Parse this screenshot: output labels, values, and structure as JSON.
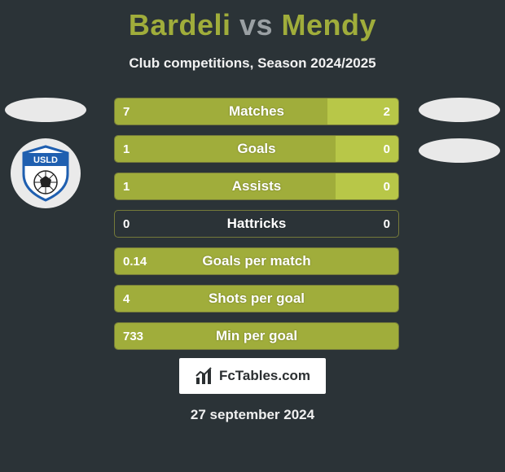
{
  "title": {
    "player1": "Bardeli",
    "vs": "vs",
    "player2": "Mendy"
  },
  "title_color": "#a0ad3b",
  "subtitle": "Club competitions, Season 2024/2025",
  "colors": {
    "bar_left": "#a0ad3b",
    "bar_right": "#b8c748",
    "bar_border": "#757a3a",
    "background": "#2b3337"
  },
  "bars": [
    {
      "label": "Matches",
      "left_val": "7",
      "right_val": "2",
      "left_pct": 75,
      "right_pct": 25
    },
    {
      "label": "Goals",
      "left_val": "1",
      "right_val": "0",
      "left_pct": 78,
      "right_pct": 22
    },
    {
      "label": "Assists",
      "left_val": "1",
      "right_val": "0",
      "left_pct": 78,
      "right_pct": 22
    },
    {
      "label": "Hattricks",
      "left_val": "0",
      "right_val": "0",
      "left_pct": 0,
      "right_pct": 0
    },
    {
      "label": "Goals per match",
      "left_val": "0.14",
      "right_val": "",
      "left_pct": 100,
      "right_pct": 0
    },
    {
      "label": "Shots per goal",
      "left_val": "4",
      "right_val": "",
      "left_pct": 100,
      "right_pct": 0
    },
    {
      "label": "Min per goal",
      "left_val": "733",
      "right_val": "",
      "left_pct": 100,
      "right_pct": 0
    }
  ],
  "footer": {
    "brand": "FcTables.com"
  },
  "date": "27 september 2024",
  "left_badges": {
    "has_ellipse": true,
    "has_club": true
  },
  "right_badges": {
    "ellipse_count": 2
  },
  "club_logo": {
    "shield_fill": "#ffffff",
    "shield_stroke": "#1f5fb0",
    "band_color": "#1f5fb0",
    "text": "USLD",
    "text_color": "#ffffff"
  }
}
